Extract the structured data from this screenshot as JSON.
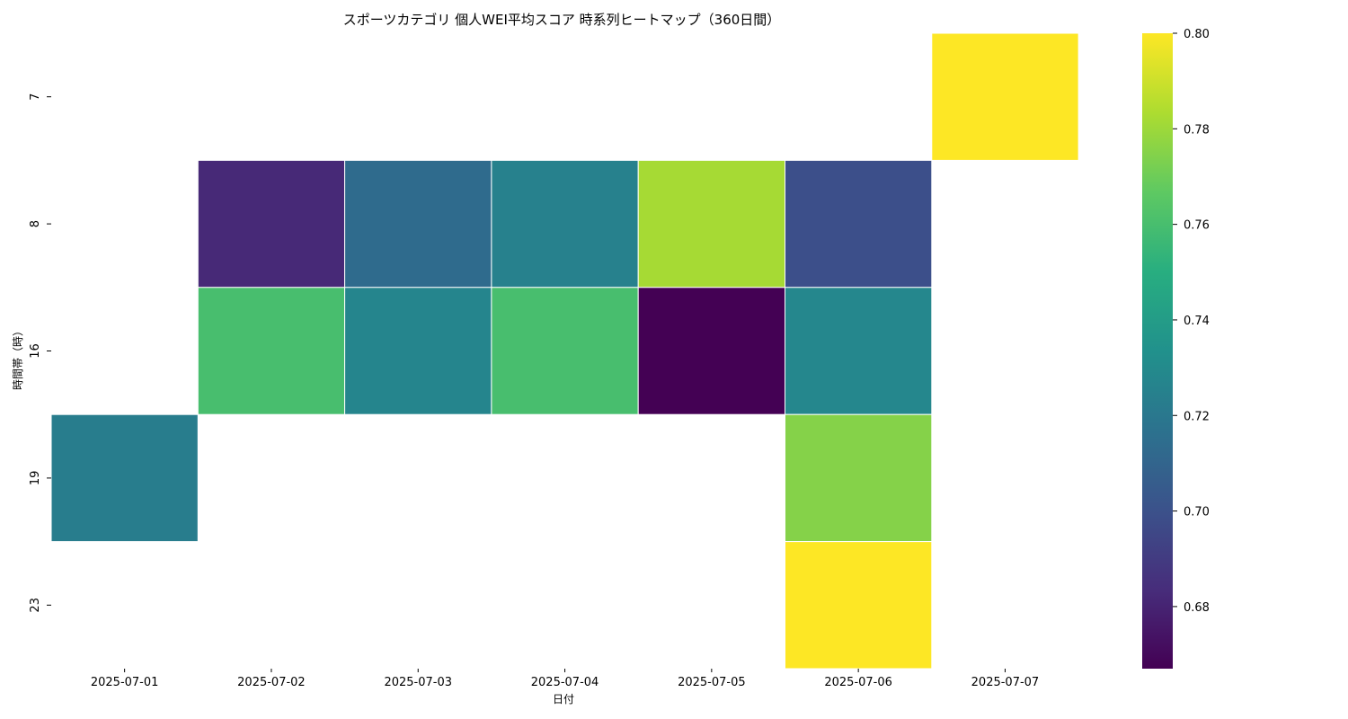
{
  "chart_data": {
    "type": "heatmap",
    "title": "スポーツカテゴリ 個人WEI平均スコア 時系列ヒートマップ（360日間）",
    "xlabel": "日付",
    "ylabel": "時間帯（時）",
    "x_categories": [
      "2025-07-01",
      "2025-07-02",
      "2025-07-03",
      "2025-07-04",
      "2025-07-05",
      "2025-07-06",
      "2025-07-07"
    ],
    "y_categories": [
      "7",
      "8",
      "16",
      "19",
      "23"
    ],
    "values": [
      [
        null,
        null,
        null,
        null,
        null,
        null,
        0.8
      ],
      [
        null,
        0.682,
        0.713,
        0.725,
        0.782,
        0.699,
        null
      ],
      [
        null,
        0.76,
        0.727,
        0.76,
        0.667,
        0.728,
        null
      ],
      [
        0.723,
        null,
        null,
        null,
        null,
        0.775,
        null
      ],
      [
        null,
        null,
        null,
        null,
        null,
        0.8,
        null
      ]
    ],
    "colorbar": {
      "colormap": "viridis",
      "min": 0.667,
      "max": 0.8,
      "ticks": [
        "0.68",
        "0.70",
        "0.72",
        "0.74",
        "0.76",
        "0.78",
        "0.80"
      ]
    }
  }
}
